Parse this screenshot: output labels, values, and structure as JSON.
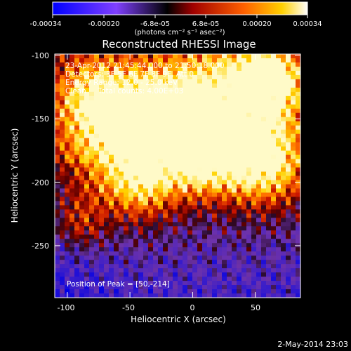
{
  "colorbar": {
    "ticks": [
      "-0.00034",
      "-0.00020",
      "-6.8e-05",
      "6.8e-05",
      "0.00020",
      "0.00034"
    ],
    "unit_label": "(photons cm⁻² s⁻¹ asec⁻²)",
    "colors": [
      "#0000ff",
      "#8040ff",
      "#000000",
      "#a00000",
      "#ff6000",
      "#ffd000",
      "#ffffff"
    ]
  },
  "title": "Reconstructed RHESSI Image",
  "annotations": {
    "line1": "23-Apr-2012 21:45:44.000 to 21:50:18.000",
    "line2": "Detectors: 3F 5F 6F 7F 8F 9F, Att 0",
    "line3": "Energy Range: 12.0 - 25.0 keV",
    "line4": "Clean     Total counts: 4.00E+03",
    "peak": "Position of Peak = [50,-214]"
  },
  "axes": {
    "xlabel": "Heliocentric X (arcsec)",
    "ylabel": "Heliocentric Y (arcsec)",
    "xrange": [
      -112,
      84
    ],
    "yrange": [
      -290,
      -98
    ],
    "xticks": [
      "-100",
      "-50",
      "0",
      "50"
    ],
    "xtick_values": [
      -100,
      -50,
      0,
      50
    ],
    "yticks": [
      "-100",
      "-150",
      "-200",
      "-250"
    ],
    "ytick_values": [
      -100,
      -150,
      -200,
      -250
    ]
  },
  "timestamp": "2-May-2014 23:03"
}
